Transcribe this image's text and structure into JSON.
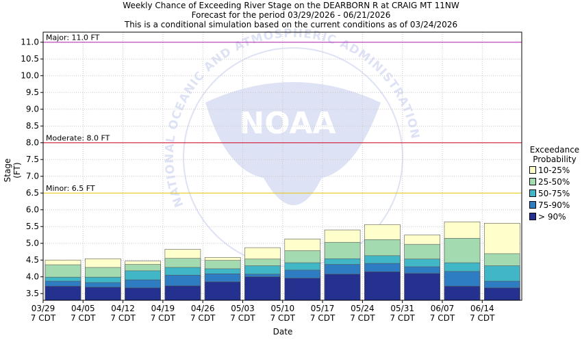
{
  "header": {
    "line1": "Weekly Chance of Exceeding River Stage on the DEARBORN R at CRAIG MT 11NW",
    "line2": "Forecast for the period 03/29/2026 - 06/21/2026",
    "line3": "This is a conditional simulation based on the current conditions as of 03/24/2026"
  },
  "watermark": {
    "text": "NATIONAL OCEANIC AND ATMOSPHERIC ADMINISTRATION",
    "logo": "NOAA"
  },
  "chart_data": {
    "type": "bar",
    "xlabel": "Date",
    "ylabel": "Stage (FT)",
    "ylim": [
      3.3,
      11.3
    ],
    "yticks": [
      "3.5",
      "4.0",
      "4.5",
      "5.0",
      "5.5",
      "6.0",
      "6.5",
      "7.0",
      "7.5",
      "8.0",
      "8.5",
      "9.0",
      "9.5",
      "10.0",
      "10.5",
      "11.0"
    ],
    "categories": [
      "03/29",
      "04/05",
      "04/12",
      "04/19",
      "04/26",
      "05/03",
      "05/10",
      "05/17",
      "05/24",
      "05/31",
      "06/07",
      "06/14"
    ],
    "category_sublabel": "7 CDT",
    "grid": true,
    "legend": {
      "title_line1": "Exceedance",
      "title_line2": "Probability",
      "placement": "right"
    },
    "series": [
      {
        "name": "> 90%",
        "color": "#24318f",
        "values": [
          3.72,
          3.69,
          3.67,
          3.73,
          3.85,
          4.0,
          3.96,
          4.08,
          4.15,
          4.1,
          3.72,
          3.67
        ]
      },
      {
        "name": "75-90%",
        "color": "#2e7cc1",
        "values": [
          3.87,
          3.83,
          3.91,
          4.05,
          4.09,
          4.08,
          4.2,
          4.37,
          4.4,
          4.3,
          4.16,
          3.87
        ]
      },
      {
        "name": "50-75%",
        "color": "#40b6c6",
        "values": [
          3.99,
          3.99,
          4.18,
          4.28,
          4.24,
          4.33,
          4.42,
          4.54,
          4.63,
          4.53,
          4.42,
          4.33
        ]
      },
      {
        "name": "25-50%",
        "color": "#a4dab0",
        "values": [
          4.36,
          4.28,
          4.37,
          4.55,
          4.49,
          4.53,
          4.78,
          5.03,
          5.11,
          4.97,
          5.15,
          4.69
        ]
      },
      {
        "name": "10-25%",
        "color": "#ffffcc",
        "values": [
          4.5,
          4.54,
          4.47,
          4.82,
          4.58,
          4.87,
          5.13,
          5.4,
          5.56,
          5.25,
          5.64,
          5.6
        ]
      }
    ],
    "thresholds": [
      {
        "label": "Major: 11.0 FT",
        "value": 11.0,
        "color": "#b020b0"
      },
      {
        "label": "Moderate: 8.0 FT",
        "value": 8.0,
        "color": "#d00020"
      },
      {
        "label": "Minor: 6.5 FT",
        "value": 6.5,
        "color": "#e8c800"
      }
    ]
  }
}
